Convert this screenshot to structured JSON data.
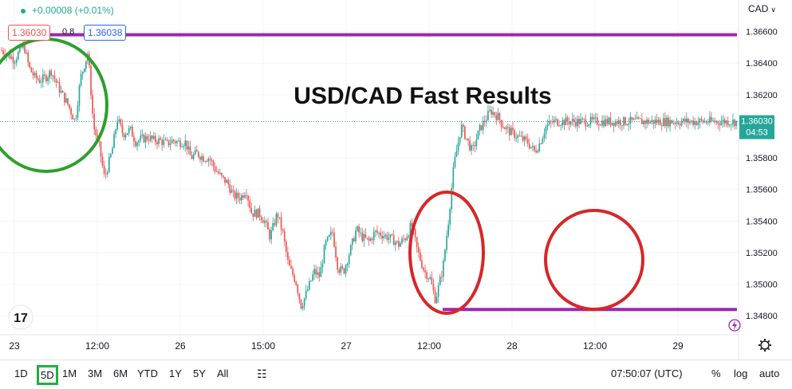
{
  "header": {
    "change": "+0.00008 (+0.01%)",
    "bid": "1.36030",
    "spread": "0.8",
    "ask": "1.36038",
    "currency": "CAD"
  },
  "chart_data": {
    "type": "line",
    "title": "USD/CAD Fast Results",
    "ylim": [
      1.3468,
      1.368
    ],
    "y_ticks": [
      "1.36600",
      "1.36400",
      "1.36200",
      "1.35800",
      "1.35600",
      "1.35400",
      "1.35200",
      "1.35000",
      "1.34800"
    ],
    "x_ticks": [
      "23",
      "12:00",
      "26",
      "15:00",
      "27",
      "12:00",
      "28",
      "12:00",
      "29"
    ],
    "last_price": "1.36030",
    "countdown": "04:53",
    "resistance": 1.3658,
    "support": 1.3484,
    "series": [
      {
        "x": [
          0,
          4,
          7,
          12,
          15,
          18,
          21,
          24,
          27,
          30,
          33,
          36,
          40,
          43,
          47,
          50,
          53,
          56,
          60,
          63,
          66,
          70,
          73,
          76,
          80,
          83,
          86,
          90,
          93,
          96,
          100,
          103,
          106,
          110,
          113,
          116,
          120,
          123,
          126,
          130,
          133,
          136,
          140,
          143,
          146,
          150,
          153,
          156,
          160,
          163,
          166,
          170,
          173,
          176,
          180,
          183,
          186,
          190,
          193,
          196,
          200,
          203,
          206,
          210,
          213,
          216,
          220,
          223,
          226,
          230,
          233,
          236,
          240,
          243,
          246,
          250,
          253,
          256,
          260,
          263,
          266,
          270,
          273,
          276,
          280,
          283,
          286,
          290,
          293,
          296,
          300,
          303,
          306,
          310,
          313,
          316,
          320,
          323,
          326,
          330,
          333,
          336,
          340,
          343,
          346,
          350,
          353,
          356,
          360,
          363,
          366,
          370,
          373,
          376,
          380,
          383,
          386,
          390,
          393,
          396,
          400
        ],
        "values": [
          1.3648,
          1.3645,
          1.3642,
          1.3652,
          1.3637,
          1.3631,
          1.3629,
          1.3631,
          1.3635,
          1.3627,
          1.362,
          1.3614,
          1.3603,
          1.3631,
          1.3647,
          1.36,
          1.3588,
          1.3567,
          1.3584,
          1.3605,
          1.3595,
          1.3598,
          1.359,
          1.3592,
          1.3593,
          1.3591,
          1.3591,
          1.3589,
          1.3591,
          1.359,
          1.359,
          1.358,
          1.3583,
          1.358,
          1.358,
          1.3573,
          1.3567,
          1.3564,
          1.3556,
          1.3555,
          1.356,
          1.3545,
          1.3545,
          1.354,
          1.353,
          1.3545,
          1.3532,
          1.3512,
          1.3502,
          1.3486,
          1.3495,
          1.3508,
          1.3505,
          1.3525,
          1.3533,
          1.351,
          1.3508,
          1.3523,
          1.3535,
          1.353,
          1.3527,
          1.3533,
          1.3532,
          1.353,
          1.3528,
          1.3525,
          1.353,
          1.3538,
          1.3522,
          1.3508,
          1.3504,
          1.349,
          1.351,
          1.354,
          1.3575,
          1.36,
          1.3592,
          1.3584,
          1.3598,
          1.3604,
          1.361,
          1.3606,
          1.36,
          1.3597,
          1.3594,
          1.3592,
          1.359,
          1.3584,
          1.359,
          1.36,
          1.3603,
          1.3603,
          1.3603,
          1.3603,
          1.3603,
          1.3603,
          1.3603,
          1.3603,
          1.3603,
          1.3603,
          1.3603,
          1.3603,
          1.3603,
          1.3603,
          1.3603,
          1.3603,
          1.3603,
          1.3603,
          1.3603,
          1.3603,
          1.3603,
          1.3603,
          1.3603,
          1.3603,
          1.3603,
          1.3603,
          1.3603,
          1.3603,
          1.3603,
          1.3603,
          1.3603
        ]
      }
    ],
    "colors": {
      "up": "#26a69a",
      "down": "#ef5350",
      "level": "#9c27b0",
      "price_line": "#26a69a",
      "axis": "#e0e3eb"
    }
  },
  "timeframes": [
    "1D",
    "5D",
    "1M",
    "3M",
    "6M",
    "YTD",
    "1Y",
    "5Y",
    "All"
  ],
  "selected_timeframe": "5D",
  "footer": {
    "time": "07:50:07 (UTC)",
    "percent": "%",
    "log": "log",
    "auto": "auto"
  }
}
